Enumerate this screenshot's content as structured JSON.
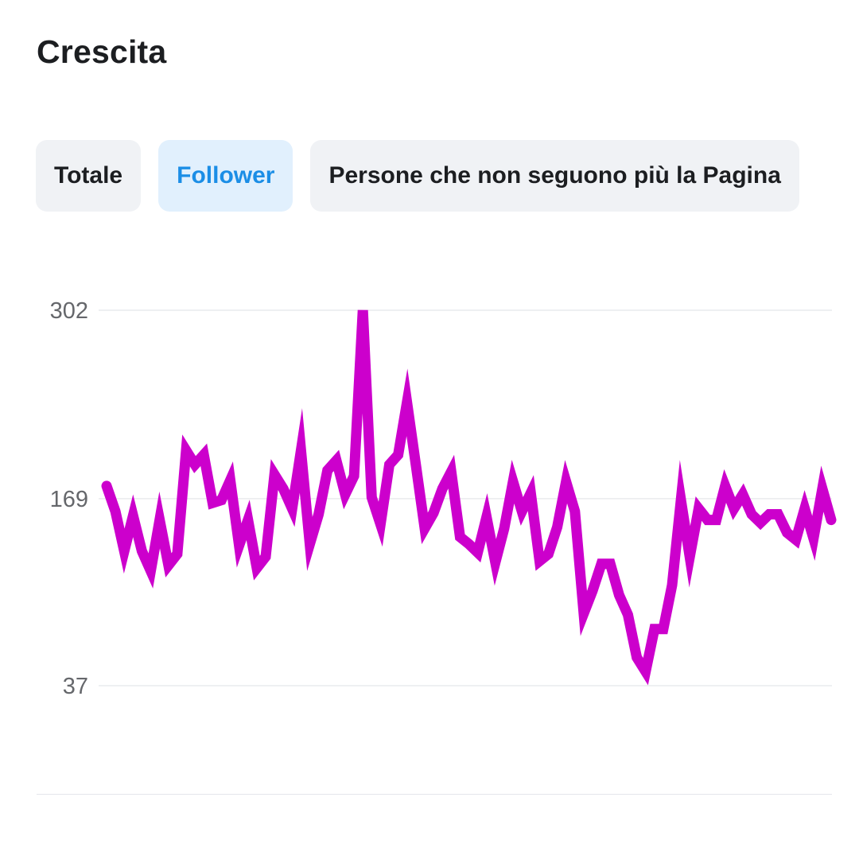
{
  "section": {
    "title": "Crescita"
  },
  "tabs": [
    {
      "label": "Totale",
      "active": false
    },
    {
      "label": "Follower",
      "active": true
    },
    {
      "label": "Persone che non seguono più la Pagina",
      "active": false
    }
  ],
  "colors": {
    "series": "#cc00cc",
    "active_tab_text": "#1b8ee6",
    "active_tab_bg": "#e1f0fd",
    "tab_bg": "#f0f2f5"
  },
  "chart_data": {
    "type": "line",
    "title": "",
    "xlabel": "",
    "ylabel": "",
    "ylim": [
      37,
      302
    ],
    "yticks": [
      302,
      169,
      37
    ],
    "grid": true,
    "series": [
      {
        "values": [
          178,
          160,
          132,
          157,
          132,
          118,
          154,
          122,
          130,
          203,
          193,
          200,
          166,
          168,
          182,
          136,
          154,
          120,
          128,
          186,
          176,
          162,
          203,
          137,
          158,
          189,
          196,
          172,
          185,
          302,
          170,
          151,
          193,
          200,
          237,
          193,
          148,
          159,
          176,
          188,
          142,
          137,
          131,
          156,
          124,
          148,
          181,
          160,
          173,
          125,
          130,
          149,
          181,
          160,
          88,
          104,
          123,
          123,
          101,
          87,
          57,
          47,
          77,
          77,
          108,
          168,
          128,
          162,
          154,
          154,
          178,
          162,
          172,
          158,
          152,
          158,
          158,
          145,
          140,
          162,
          141,
          176,
          154
        ]
      }
    ]
  }
}
